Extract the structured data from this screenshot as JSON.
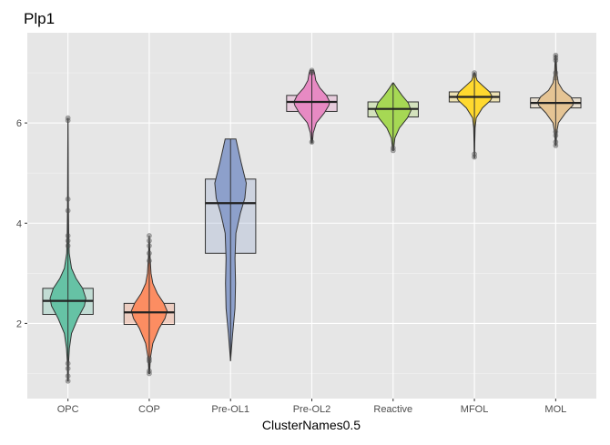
{
  "chart_data": {
    "type": "violin",
    "title": "Plp1",
    "xlabel": "ClusterNames0.5",
    "ylabel": "",
    "ylim": [
      0.5,
      7.8
    ],
    "yticks": [
      2,
      4,
      6
    ],
    "grid": true,
    "background": "#E6E6E6",
    "categories": [
      "OPC",
      "COP",
      "Pre-OL1",
      "Pre-OL2",
      "Reactive",
      "MFOL",
      "MOL"
    ],
    "colors": [
      "#66C2A5",
      "#FC8D62",
      "#8DA0CB",
      "#E78AC3",
      "#A6D854",
      "#FFD92F",
      "#E5C494"
    ],
    "groups": [
      {
        "name": "OPC",
        "box": {
          "q1": 2.18,
          "median": 2.45,
          "q3": 2.7
        },
        "violin_range": [
          0.85,
          6.1
        ],
        "density": [
          [
            0.85,
            0.02
          ],
          [
            1.2,
            0.03
          ],
          [
            1.5,
            0.08
          ],
          [
            1.8,
            0.2
          ],
          [
            2.1,
            0.55
          ],
          [
            2.35,
            0.92
          ],
          [
            2.5,
            1.0
          ],
          [
            2.7,
            0.82
          ],
          [
            2.9,
            0.45
          ],
          [
            3.1,
            0.2
          ],
          [
            3.4,
            0.07
          ],
          [
            3.8,
            0.04
          ],
          [
            4.5,
            0.02
          ],
          [
            5.5,
            0.01
          ],
          [
            6.1,
            0.0
          ]
        ],
        "points": [
          0.85,
          0.95,
          1.1,
          1.2,
          3.55,
          3.65,
          3.75,
          4.25,
          4.48,
          6.05,
          6.1
        ]
      },
      {
        "name": "COP",
        "box": {
          "q1": 1.98,
          "median": 2.22,
          "q3": 2.4
        },
        "violin_range": [
          1.0,
          3.75
        ],
        "density": [
          [
            1.0,
            0.02
          ],
          [
            1.3,
            0.06
          ],
          [
            1.6,
            0.2
          ],
          [
            1.9,
            0.55
          ],
          [
            2.1,
            0.88
          ],
          [
            2.25,
            1.0
          ],
          [
            2.4,
            0.82
          ],
          [
            2.6,
            0.45
          ],
          [
            2.8,
            0.2
          ],
          [
            3.0,
            0.1
          ],
          [
            3.3,
            0.05
          ],
          [
            3.75,
            0.0
          ]
        ],
        "points": [
          1.0,
          1.05,
          1.25,
          1.3,
          3.25,
          3.4,
          3.55,
          3.65,
          3.75
        ]
      },
      {
        "name": "Pre-OL1",
        "box": {
          "q1": 3.4,
          "median": 4.4,
          "q3": 4.88
        },
        "violin_range": [
          1.25,
          5.68
        ],
        "density": [
          [
            1.25,
            0.0
          ],
          [
            1.8,
            0.12
          ],
          [
            2.3,
            0.25
          ],
          [
            2.8,
            0.28
          ],
          [
            3.3,
            0.25
          ],
          [
            3.8,
            0.3
          ],
          [
            4.2,
            0.55
          ],
          [
            4.5,
            0.8
          ],
          [
            4.8,
            0.88
          ],
          [
            5.2,
            0.6
          ],
          [
            5.68,
            0.3
          ]
        ],
        "points": []
      },
      {
        "name": "Pre-OL2",
        "box": {
          "q1": 6.23,
          "median": 6.42,
          "q3": 6.55
        },
        "violin_range": [
          5.6,
          7.05
        ],
        "density": [
          [
            5.6,
            0.03
          ],
          [
            5.8,
            0.08
          ],
          [
            6.0,
            0.25
          ],
          [
            6.2,
            0.7
          ],
          [
            6.35,
            0.95
          ],
          [
            6.42,
            1.0
          ],
          [
            6.55,
            0.82
          ],
          [
            6.7,
            0.45
          ],
          [
            6.85,
            0.22
          ],
          [
            7.0,
            0.15
          ],
          [
            7.05,
            0.1
          ]
        ],
        "points": [
          5.62,
          7.0,
          7.02,
          7.05
        ]
      },
      {
        "name": "Reactive",
        "box": {
          "q1": 6.12,
          "median": 6.28,
          "q3": 6.42
        },
        "violin_range": [
          5.45,
          6.8
        ],
        "density": [
          [
            5.45,
            0.02
          ],
          [
            5.7,
            0.1
          ],
          [
            5.9,
            0.35
          ],
          [
            6.1,
            0.8
          ],
          [
            6.25,
            1.0
          ],
          [
            6.4,
            0.85
          ],
          [
            6.55,
            0.5
          ],
          [
            6.7,
            0.2
          ],
          [
            6.8,
            0.02
          ]
        ],
        "points": [
          5.45,
          5.5
        ]
      },
      {
        "name": "MFOL",
        "box": {
          "q1": 6.42,
          "median": 6.52,
          "q3": 6.62
        },
        "violin_range": [
          5.3,
          7.0
        ],
        "density": [
          [
            5.3,
            0.01
          ],
          [
            5.6,
            0.02
          ],
          [
            5.9,
            0.04
          ],
          [
            6.1,
            0.1
          ],
          [
            6.3,
            0.45
          ],
          [
            6.45,
            0.9
          ],
          [
            6.52,
            1.0
          ],
          [
            6.62,
            0.85
          ],
          [
            6.75,
            0.45
          ],
          [
            6.85,
            0.15
          ],
          [
            7.0,
            0.02
          ]
        ],
        "points": [
          5.32,
          5.38,
          6.95,
          7.0
        ]
      },
      {
        "name": "MOL",
        "box": {
          "q1": 6.3,
          "median": 6.4,
          "q3": 6.5
        },
        "violin_range": [
          5.55,
          7.35
        ],
        "density": [
          [
            5.55,
            0.02
          ],
          [
            5.8,
            0.05
          ],
          [
            6.0,
            0.15
          ],
          [
            6.2,
            0.55
          ],
          [
            6.35,
            0.95
          ],
          [
            6.42,
            1.0
          ],
          [
            6.52,
            0.85
          ],
          [
            6.65,
            0.4
          ],
          [
            6.8,
            0.15
          ],
          [
            7.0,
            0.06
          ],
          [
            7.35,
            0.02
          ]
        ],
        "points": [
          5.55,
          5.62,
          5.75,
          5.82,
          6.9,
          7.0,
          7.25,
          7.3,
          7.35
        ]
      }
    ]
  }
}
